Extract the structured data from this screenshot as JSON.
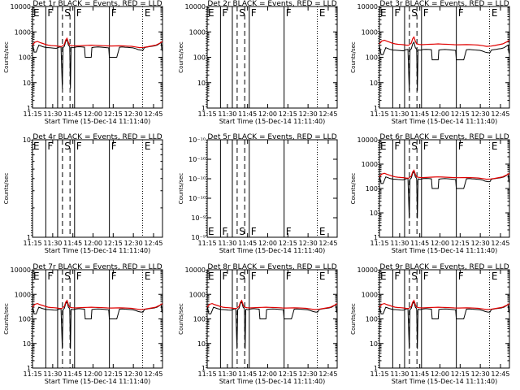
{
  "charts": [
    {
      "title": "Det 1r BLACK = Events, RED = LLD",
      "ylabel": "Counts/sec",
      "xlabel": "Start Time (15-Dec-14 11:11:40)",
      "yticks": [
        "1",
        "10",
        "100",
        "1000",
        "10000"
      ],
      "flags": [
        "E",
        "F",
        "S",
        "F",
        "F",
        "E"
      ],
      "has_data": true,
      "black_offset": 0.0,
      "red_offset": 0.0
    },
    {
      "title": "Det 2r BLACK = Events, RED = LLD",
      "ylabel": "Counts/sec",
      "xlabel": "Start Time (15-Dec-14 11:11:40)",
      "yticks": [
        "1",
        "10",
        "100",
        "1000",
        "10000"
      ],
      "flags": [
        "E",
        "F",
        "S",
        "F",
        "F",
        "E"
      ],
      "has_data": false
    },
    {
      "title": "Det 3r BLACK = Events, RED = LLD",
      "ylabel": "Counts/sec",
      "xlabel": "Start Time (15-Dec-14 11:11:40)",
      "yticks": [
        "1",
        "10",
        "100",
        "1000",
        "10000"
      ],
      "flags": [
        "E",
        "F",
        "S",
        "F",
        "F",
        "E"
      ],
      "has_data": true,
      "black_offset": -0.1,
      "red_offset": 0.05
    },
    {
      "title": "Det 4r BLACK = Events, RED = LLD",
      "ylabel": "Counts/sec",
      "xlabel": "Start Time (15-Dec-14 11:11:40)",
      "yticks": [
        "1",
        "10"
      ],
      "flags": [
        "E",
        "F",
        "S",
        "F",
        "F",
        "E"
      ],
      "has_data": false
    },
    {
      "title": "Det 5r BLACK = Events, RED = LLD",
      "ylabel": "Counts/sec",
      "xlabel": "Start Time (15-Dec-14 11:11:40)",
      "yticks": [
        "10⁻⁹",
        "10⁻⁹",
        "10⁻¹⁰",
        "10⁻¹⁰",
        "10⁻¹⁰",
        "10⁻¹⁰"
      ],
      "flags": [
        "E",
        "F",
        "S",
        "F",
        "F",
        "E"
      ],
      "has_data": false
    },
    {
      "title": "Det 6r BLACK = Events, RED = LLD",
      "ylabel": "Counts/sec",
      "xlabel": "Start Time (15-Dec-14 11:11:40)",
      "yticks": [
        "1",
        "10",
        "100",
        "1000",
        "10000"
      ],
      "flags": [
        "E",
        "F",
        "S",
        "F",
        "F",
        "E"
      ],
      "has_data": true,
      "black_offset": 0.0,
      "red_offset": 0.0
    },
    {
      "title": "Det 7r BLACK = Events, RED = LLD",
      "ylabel": "Counts/sec",
      "xlabel": "Start Time (15-Dec-14 11:11:40)",
      "yticks": [
        "1",
        "10",
        "100",
        "1000",
        "10000"
      ],
      "flags": [
        "E",
        "F",
        "S",
        "F",
        "F",
        "E"
      ],
      "has_data": true,
      "black_offset": 0.0,
      "red_offset": 0.0
    },
    {
      "title": "Det 8r BLACK = Events, RED = LLD",
      "ylabel": "Counts/sec",
      "xlabel": "Start Time (15-Dec-14 11:11:40)",
      "yticks": [
        "1",
        "10",
        "100",
        "1000",
        "10000"
      ],
      "flags": [
        "E",
        "F",
        "S",
        "F",
        "F",
        "E"
      ],
      "has_data": true,
      "black_offset": 0.0,
      "red_offset": 0.0
    },
    {
      "title": "Det 9r BLACK = Events, RED = LLD",
      "ylabel": "Counts/sec",
      "xlabel": "Start Time (15-Dec-14 11:11:40)",
      "yticks": [
        "1",
        "10",
        "100",
        "1000",
        "10000"
      ],
      "flags": [
        "E",
        "F",
        "S",
        "F",
        "F",
        "E"
      ],
      "has_data": true,
      "black_offset": 0.0,
      "red_offset": 0.0
    }
  ],
  "chart_data": {
    "type": "line",
    "xticks": [
      "11:15",
      "11:30",
      "11:45",
      "12:00",
      "12:15",
      "12:30",
      "12:45"
    ],
    "xlim_minutes": [
      3.3,
      100
    ],
    "xtick_minutes": [
      3.33,
      18.33,
      33.33,
      48.33,
      63.33,
      78.33,
      93.33
    ],
    "ylim_log": [
      1,
      10000
    ],
    "flag_lines": [
      {
        "label": "E",
        "minute": 2.6,
        "style": "dotted"
      },
      {
        "label": "F",
        "minute": 13.2,
        "style": "solid"
      },
      {
        "label": "S",
        "minute": 22.0,
        "style": "solid"
      },
      {
        "label": "S",
        "minute": 25.6,
        "style": "dashed"
      },
      {
        "label": "S",
        "minute": 31.2,
        "style": "dashed"
      },
      {
        "label": "F",
        "minute": 34.6,
        "style": "solid"
      },
      {
        "label": "F",
        "minute": 60.5,
        "style": "solid"
      },
      {
        "label": "E",
        "minute": 85.2,
        "style": "dotted"
      }
    ],
    "series": [
      {
        "name": "Events",
        "color": "#000000",
        "x": [
          3.3,
          4.5,
          6,
          8,
          9.5,
          11,
          12.5,
          13.5,
          15,
          17,
          19,
          21,
          23,
          24.5,
          25.5,
          26,
          27,
          28,
          29,
          30,
          31,
          31.5,
          32,
          32.5,
          33,
          34,
          36,
          38,
          40,
          42,
          42.5,
          44,
          46,
          47,
          47.5,
          49,
          52,
          55,
          58,
          60,
          60.5,
          62,
          64,
          66,
          68,
          70,
          72,
          74,
          76,
          78,
          80,
          82,
          84,
          85.5,
          86.5,
          88,
          90,
          92,
          94,
          96,
          98,
          99,
          99.5,
          100
        ],
        "y": [
          370,
          160,
          160,
          300,
          280,
          260,
          250,
          240,
          240,
          235,
          230,
          225,
          250,
          260,
          6,
          240,
          270,
          420,
          500,
          300,
          260,
          6,
          240,
          250,
          240,
          240,
          255,
          260,
          255,
          250,
          100,
          100,
          100,
          100,
          240,
          250,
          255,
          250,
          240,
          235,
          100,
          100,
          100,
          100,
          250,
          255,
          250,
          245,
          240,
          235,
          220,
          200,
          190,
          190,
          240,
          250,
          260,
          270,
          280,
          300,
          350,
          380,
          200,
          170
        ]
      },
      {
        "name": "LLD",
        "color": "#e00000",
        "x": [
          3.3,
          5,
          7,
          9,
          11,
          13,
          15,
          17,
          19,
          21,
          23,
          25,
          27,
          28,
          29,
          30,
          31,
          33,
          35,
          38,
          41,
          44,
          47,
          50,
          53,
          56,
          59,
          62,
          65,
          68,
          71,
          74,
          77,
          80,
          83,
          86,
          89,
          92,
          95,
          98,
          100
        ],
        "y": [
          300,
          390,
          420,
          380,
          350,
          320,
          300,
          290,
          285,
          280,
          270,
          265,
          320,
          480,
          560,
          380,
          300,
          285,
          280,
          285,
          290,
          295,
          300,
          295,
          290,
          285,
          280,
          278,
          280,
          282,
          280,
          275,
          270,
          255,
          240,
          245,
          260,
          280,
          300,
          360,
          420
        ]
      }
    ]
  }
}
